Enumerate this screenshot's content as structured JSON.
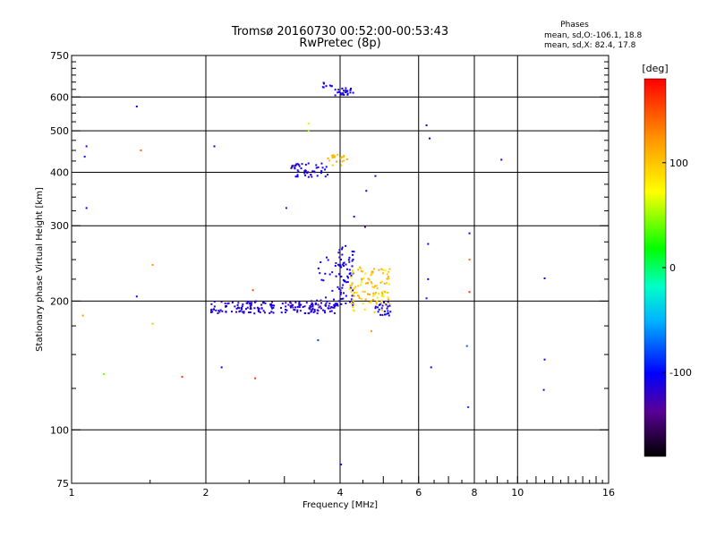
{
  "chart_data": {
    "type": "scatter",
    "title": "Tromsø 20160730 00:52:00-00:53:43",
    "subtitle": "RwPretec (8p)",
    "xlabel": "Frequency [MHz]",
    "ylabel": "Stationary phase Virtual Height [km]",
    "x_scale": "log",
    "y_scale": "log",
    "xlim": [
      1,
      16
    ],
    "ylim": [
      75,
      750
    ],
    "x_ticks": [
      1,
      2,
      4,
      6,
      8,
      10,
      16
    ],
    "x_tick_labels": [
      "1",
      "2",
      "4",
      "6",
      "8",
      "10",
      "16"
    ],
    "x_gridlines": [
      2,
      4,
      6,
      8,
      10
    ],
    "y_ticks": [
      75,
      100,
      200,
      300,
      400,
      500,
      600,
      750
    ],
    "y_tick_labels": [
      "75",
      "100",
      "200",
      "300",
      "400",
      "500",
      "600",
      "750"
    ],
    "y_gridlines": [
      100,
      200,
      300,
      400,
      500,
      600
    ],
    "grid": true,
    "legend": {
      "title": "Phases",
      "line1": "mean, sd,O:-106.1, 18.8",
      "line2": "mean, sd,X:  82.4, 17.8"
    },
    "colorbar": {
      "label": "[deg]",
      "range": [
        -180,
        180
      ],
      "ticks": [
        100,
        0,
        -100
      ],
      "tick_labels": [
        "100",
        "0",
        "-100"
      ]
    },
    "points": [
      [
        1.08,
        460,
        -110
      ],
      [
        1.07,
        435,
        -95
      ],
      [
        1.08,
        330,
        -100
      ],
      [
        1.06,
        185,
        120
      ],
      [
        1.18,
        135,
        40
      ],
      [
        1.4,
        570,
        -105
      ],
      [
        1.43,
        450,
        140
      ],
      [
        1.4,
        205,
        -110
      ],
      [
        1.52,
        243,
        120
      ],
      [
        1.52,
        177,
        100
      ],
      [
        1.77,
        133,
        160
      ],
      [
        2.09,
        460,
        -100
      ],
      [
        2.17,
        140,
        -110
      ],
      [
        2.58,
        132,
        160
      ],
      [
        2.55,
        212,
        150
      ],
      [
        3.03,
        330,
        -95
      ],
      [
        3.63,
        200,
        100
      ],
      [
        3.4,
        500,
        50
      ],
      [
        3.4,
        520,
        60
      ],
      [
        4.55,
        298,
        -150
      ],
      [
        4.7,
        170,
        120
      ],
      [
        6.25,
        515,
        -110
      ],
      [
        6.35,
        480,
        -105
      ],
      [
        6.3,
        272,
        -110
      ],
      [
        6.3,
        225,
        -105
      ],
      [
        6.4,
        140,
        -110
      ],
      [
        6.25,
        203,
        -95
      ],
      [
        7.8,
        288,
        -110
      ],
      [
        7.8,
        250,
        140
      ],
      [
        7.8,
        210,
        160
      ],
      [
        7.7,
        157,
        -75
      ],
      [
        7.75,
        113,
        -85
      ],
      [
        9.2,
        428,
        -110
      ],
      [
        11.5,
        226,
        -110
      ],
      [
        11.5,
        146,
        -115
      ],
      [
        11.45,
        124,
        -120
      ],
      [
        4.02,
        83,
        -110
      ],
      [
        3.57,
        162,
        -85
      ],
      [
        4.58,
        362,
        -105
      ],
      [
        4.8,
        392,
        -110
      ],
      [
        4.3,
        315,
        -110
      ]
    ],
    "clusters": [
      {
        "x_range": [
          2.05,
          3.95
        ],
        "y_range": [
          187,
          200
        ],
        "count": 190,
        "phase_range": [
          -130,
          -100
        ]
      },
      {
        "x_range": [
          3.95,
          4.3
        ],
        "y_range": [
          195,
          270
        ],
        "count": 60,
        "phase_range": [
          -120,
          -100
        ]
      },
      {
        "x_range": [
          3.55,
          4.2
        ],
        "y_range": [
          200,
          260
        ],
        "count": 25,
        "phase_range": [
          -120,
          -100
        ]
      },
      {
        "x_range": [
          4.2,
          5.2
        ],
        "y_range": [
          188,
          240
        ],
        "count": 110,
        "phase_range": [
          80,
          120
        ]
      },
      {
        "x_range": [
          4.8,
          5.2
        ],
        "y_range": [
          185,
          200
        ],
        "count": 25,
        "phase_range": [
          -115,
          -100
        ]
      },
      {
        "x_range": [
          3.1,
          3.75
        ],
        "y_range": [
          390,
          420
        ],
        "count": 50,
        "phase_range": [
          -125,
          -100
        ]
      },
      {
        "x_range": [
          3.75,
          4.15
        ],
        "y_range": [
          415,
          440
        ],
        "count": 20,
        "phase_range": [
          95,
          115
        ]
      },
      {
        "x_range": [
          3.9,
          4.3
        ],
        "y_range": [
          605,
          630
        ],
        "count": 28,
        "phase_range": [
          -120,
          -100
        ]
      },
      {
        "x_range": [
          3.65,
          3.85
        ],
        "y_range": [
          630,
          650
        ],
        "count": 8,
        "phase_range": [
          -115,
          -100
        ]
      }
    ]
  }
}
